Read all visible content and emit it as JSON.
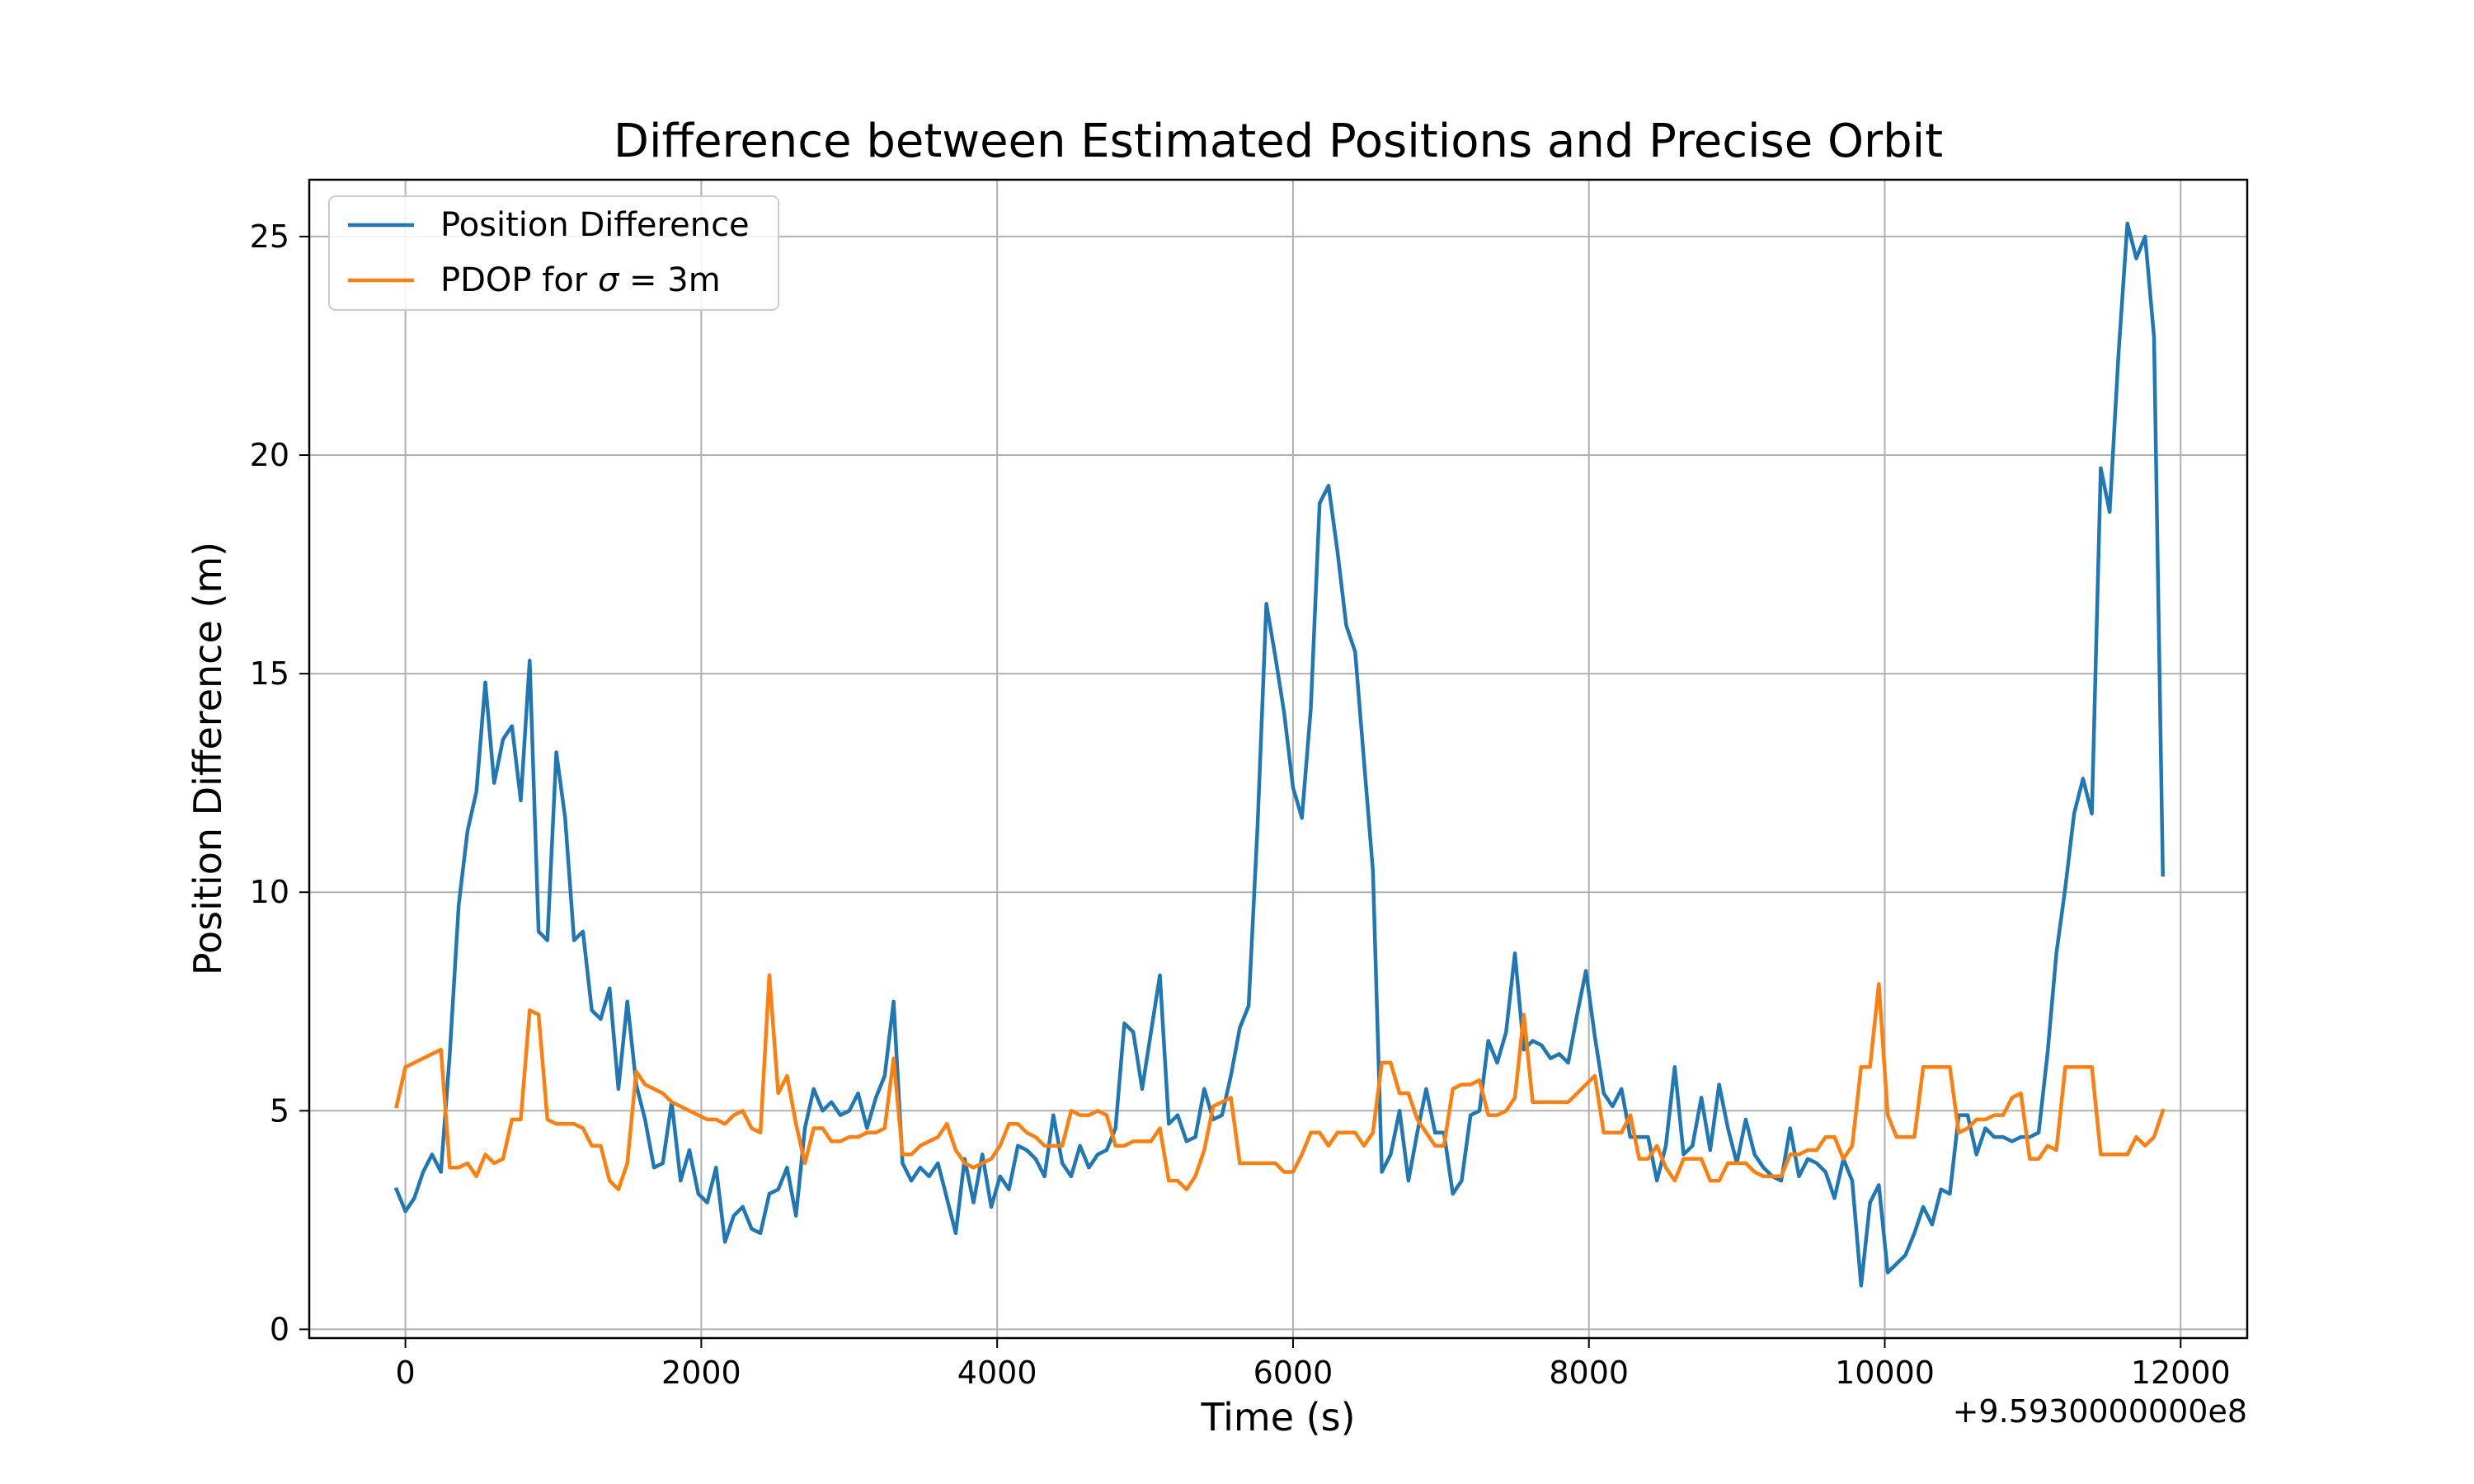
{
  "chart_data": {
    "type": "line",
    "title": "Difference between Estimated Positions and Precise Orbit",
    "xlabel": "Time (s)",
    "ylabel": "Position Difference (m)",
    "x_offset_label": "+9.5930000000e8",
    "xlim": [
      -650,
      12450
    ],
    "ylim": [
      -0.2,
      26.3
    ],
    "xticks": [
      0,
      2000,
      4000,
      6000,
      8000,
      10000,
      12000
    ],
    "xtick_labels": [
      "0",
      "2000",
      "4000",
      "6000",
      "8000",
      "10000",
      "12000"
    ],
    "yticks": [
      0,
      5,
      10,
      15,
      20,
      25
    ],
    "ytick_labels": [
      "0",
      "5",
      "10",
      "15",
      "20",
      "25"
    ],
    "grid": true,
    "legend_position": "top-left",
    "series": [
      {
        "name": "Position Difference",
        "legend_label": "Position Difference",
        "color": "#1f77b4",
        "x": [
          -60,
          0,
          60,
          120,
          180,
          240,
          300,
          360,
          420,
          480,
          540,
          600,
          660,
          720,
          780,
          840,
          900,
          960,
          1020,
          1080,
          1140,
          1200,
          1260,
          1320,
          1380,
          1440,
          1500,
          1560,
          1620,
          1680,
          1740,
          1800,
          1860,
          1920,
          1980,
          2040,
          2100,
          2160,
          2220,
          2280,
          2340,
          2400,
          2460,
          2520,
          2580,
          2640,
          2700,
          2760,
          2820,
          2880,
          2940,
          3000,
          3060,
          3120,
          3180,
          3240,
          3300,
          3360,
          3420,
          3480,
          3540,
          3600,
          3660,
          3720,
          3780,
          3840,
          3900,
          3960,
          4020,
          4080,
          4140,
          4200,
          4260,
          4320,
          4380,
          4440,
          4500,
          4560,
          4620,
          4680,
          4740,
          4800,
          4860,
          4920,
          4980,
          5040,
          5100,
          5160,
          5220,
          5280,
          5340,
          5400,
          5460,
          5520,
          5580,
          5640,
          5700,
          5760,
          5820,
          5880,
          5940,
          6000,
          6060,
          6120,
          6180,
          6240,
          6300,
          6360,
          6420,
          6480,
          6540,
          6600,
          6660,
          6720,
          6780,
          6840,
          6900,
          6960,
          7020,
          7080,
          7140,
          7200,
          7260,
          7320,
          7380,
          7440,
          7500,
          7560,
          7620,
          7680,
          7740,
          7800,
          7860,
          7920,
          7980,
          8040,
          8100,
          8160,
          8220,
          8280,
          8340,
          8400,
          8460,
          8520,
          8580,
          8640,
          8700,
          8760,
          8820,
          8880,
          8940,
          9000,
          9060,
          9120,
          9180,
          9240,
          9300,
          9360,
          9420,
          9480,
          9540,
          9600,
          9660,
          9720,
          9780,
          9840,
          9900,
          9960,
          10020,
          10080,
          10140,
          10200,
          10260,
          10320,
          10380,
          10440,
          10500,
          10560,
          10620,
          10680,
          10740,
          10800,
          10860,
          10920,
          10980,
          11040,
          11100,
          11160,
          11220,
          11280,
          11340,
          11400,
          11460,
          11520,
          11580,
          11640,
          11700,
          11760,
          11820,
          11880
        ],
        "y": [
          3.2,
          2.7,
          3.0,
          3.6,
          4.0,
          3.6,
          6.3,
          9.7,
          11.4,
          12.3,
          14.8,
          12.5,
          13.5,
          13.8,
          12.1,
          15.3,
          9.1,
          8.9,
          13.2,
          11.7,
          8.9,
          9.1,
          7.3,
          7.1,
          7.8,
          5.5,
          7.5,
          5.6,
          4.8,
          3.7,
          3.8,
          5.2,
          3.4,
          4.1,
          3.1,
          2.9,
          3.7,
          2.0,
          2.6,
          2.8,
          2.3,
          2.2,
          3.1,
          3.2,
          3.7,
          2.6,
          4.6,
          5.5,
          5.0,
          5.2,
          4.9,
          5.0,
          5.4,
          4.6,
          5.3,
          5.8,
          7.5,
          3.8,
          3.4,
          3.7,
          3.5,
          3.8,
          3.0,
          2.2,
          3.9,
          2.9,
          4.0,
          2.8,
          3.5,
          3.2,
          4.2,
          4.1,
          3.9,
          3.5,
          4.9,
          3.8,
          3.5,
          4.2,
          3.7,
          4.0,
          4.1,
          4.6,
          7.0,
          6.8,
          5.5,
          6.8,
          8.1,
          4.7,
          4.9,
          4.3,
          4.4,
          5.5,
          4.8,
          4.9,
          5.8,
          6.9,
          7.4,
          11.5,
          16.6,
          15.4,
          14.1,
          12.4,
          11.7,
          14.2,
          18.9,
          19.3,
          17.8,
          16.1,
          15.5,
          13.0,
          10.5,
          3.6,
          4.0,
          5.0,
          3.4,
          4.5,
          5.5,
          4.5,
          4.5,
          3.1,
          3.4,
          4.9,
          5.0,
          6.6,
          6.1,
          6.8,
          8.6,
          6.4,
          6.6,
          6.5,
          6.2,
          6.3,
          6.1,
          7.2,
          8.2,
          6.7,
          5.4,
          5.1,
          5.5,
          4.4,
          4.4,
          4.4,
          3.4,
          4.2,
          6.0,
          4.0,
          4.2,
          5.3,
          4.1,
          5.6,
          4.6,
          3.8,
          4.8,
          4.0,
          3.7,
          3.5,
          3.4,
          4.6,
          3.5,
          3.9,
          3.8,
          3.6,
          3.0,
          3.9,
          3.4,
          1.0,
          2.9,
          3.3,
          1.3,
          1.5,
          1.7,
          2.2,
          2.8,
          2.4,
          3.2,
          3.1,
          4.9,
          4.9,
          4.0,
          4.6,
          4.4,
          4.4,
          4.3,
          4.4,
          4.4,
          4.5,
          6.3,
          8.6,
          10.1,
          11.8,
          12.6,
          11.8,
          19.7,
          18.7,
          22.3,
          25.3,
          24.5,
          25.0,
          22.7,
          10.4
        ]
      },
      {
        "name": "PDOP for σ = 3m",
        "legend_label_pre": "PDOP for ",
        "legend_label_sym": "σ",
        "legend_label_post": " = 3m",
        "color": "#ff7f0e",
        "x": [
          -60,
          0,
          60,
          120,
          180,
          240,
          300,
          360,
          420,
          480,
          540,
          600,
          660,
          720,
          780,
          840,
          900,
          960,
          1020,
          1080,
          1140,
          1200,
          1260,
          1320,
          1380,
          1440,
          1500,
          1560,
          1620,
          1680,
          1740,
          1800,
          1860,
          1920,
          1980,
          2040,
          2100,
          2160,
          2220,
          2280,
          2340,
          2400,
          2460,
          2520,
          2580,
          2640,
          2700,
          2760,
          2820,
          2880,
          2940,
          3000,
          3060,
          3120,
          3180,
          3240,
          3300,
          3360,
          3420,
          3480,
          3540,
          3600,
          3660,
          3720,
          3780,
          3840,
          3900,
          3960,
          4020,
          4080,
          4140,
          4200,
          4260,
          4320,
          4380,
          4440,
          4500,
          4560,
          4620,
          4680,
          4740,
          4800,
          4860,
          4920,
          4980,
          5040,
          5100,
          5160,
          5220,
          5280,
          5340,
          5400,
          5460,
          5520,
          5580,
          5640,
          5700,
          5760,
          5820,
          5880,
          5940,
          6000,
          6060,
          6120,
          6180,
          6240,
          6300,
          6360,
          6420,
          6480,
          6540,
          6600,
          6660,
          6720,
          6780,
          6840,
          6900,
          6960,
          7020,
          7080,
          7140,
          7200,
          7260,
          7320,
          7380,
          7440,
          7500,
          7560,
          7620,
          7680,
          7740,
          7800,
          7860,
          7920,
          7980,
          8040,
          8100,
          8160,
          8220,
          8280,
          8340,
          8400,
          8460,
          8520,
          8580,
          8640,
          8700,
          8760,
          8820,
          8880,
          8940,
          9000,
          9060,
          9120,
          9180,
          9240,
          9300,
          9360,
          9420,
          9480,
          9540,
          9600,
          9660,
          9720,
          9780,
          9840,
          9900,
          9960,
          10020,
          10080,
          10140,
          10200,
          10260,
          10320,
          10380,
          10440,
          10500,
          10560,
          10620,
          10680,
          10740,
          10800,
          10860,
          10920,
          10980,
          11040,
          11100,
          11160,
          11220,
          11280,
          11340,
          11400,
          11460,
          11520,
          11580,
          11640,
          11700,
          11760,
          11820,
          11880
        ],
        "y": [
          5.1,
          6.0,
          6.1,
          6.2,
          6.3,
          6.4,
          3.7,
          3.7,
          3.8,
          3.5,
          4.0,
          3.8,
          3.9,
          4.8,
          4.8,
          7.3,
          7.2,
          4.8,
          4.7,
          4.7,
          4.7,
          4.6,
          4.2,
          4.2,
          3.4,
          3.2,
          3.8,
          5.9,
          5.6,
          5.5,
          5.4,
          5.2,
          5.1,
          5.0,
          4.9,
          4.8,
          4.8,
          4.7,
          4.9,
          5.0,
          4.6,
          4.5,
          8.1,
          5.4,
          5.8,
          4.7,
          3.8,
          4.6,
          4.6,
          4.3,
          4.3,
          4.4,
          4.4,
          4.5,
          4.5,
          4.6,
          6.2,
          4.0,
          4.0,
          4.2,
          4.3,
          4.4,
          4.7,
          4.1,
          3.8,
          3.7,
          3.8,
          3.9,
          4.2,
          4.7,
          4.7,
          4.5,
          4.4,
          4.2,
          4.2,
          4.2,
          5.0,
          4.9,
          4.9,
          5.0,
          4.9,
          4.2,
          4.2,
          4.3,
          4.3,
          4.3,
          4.6,
          3.4,
          3.4,
          3.2,
          3.5,
          4.1,
          5.1,
          5.2,
          5.3,
          3.8,
          3.8,
          3.8,
          3.8,
          3.8,
          3.6,
          3.6,
          4.0,
          4.5,
          4.5,
          4.2,
          4.5,
          4.5,
          4.5,
          4.2,
          4.5,
          6.1,
          6.1,
          5.4,
          5.4,
          4.8,
          4.5,
          4.2,
          4.2,
          5.5,
          5.6,
          5.6,
          5.7,
          4.9,
          4.9,
          5.0,
          5.3,
          7.2,
          5.2,
          5.2,
          5.2,
          5.2,
          5.2,
          5.4,
          5.6,
          5.8,
          4.5,
          4.5,
          4.5,
          4.9,
          3.9,
          3.9,
          4.2,
          3.7,
          3.4,
          3.9,
          3.9,
          3.9,
          3.4,
          3.4,
          3.8,
          3.8,
          3.8,
          3.6,
          3.5,
          3.5,
          3.5,
          4.0,
          4.0,
          4.1,
          4.1,
          4.4,
          4.4,
          3.9,
          4.2,
          6.0,
          6.0,
          7.9,
          4.9,
          4.4,
          4.4,
          4.4,
          6.0,
          6.0,
          6.0,
          6.0,
          4.5,
          4.6,
          4.8,
          4.8,
          4.9,
          4.9,
          5.3,
          5.4,
          3.9,
          3.9,
          4.2,
          4.1,
          6.0,
          6.0,
          6.0,
          6.0,
          4.0,
          4.0,
          4.0,
          4.0,
          4.4,
          4.2,
          4.4,
          5.0
        ]
      }
    ]
  }
}
